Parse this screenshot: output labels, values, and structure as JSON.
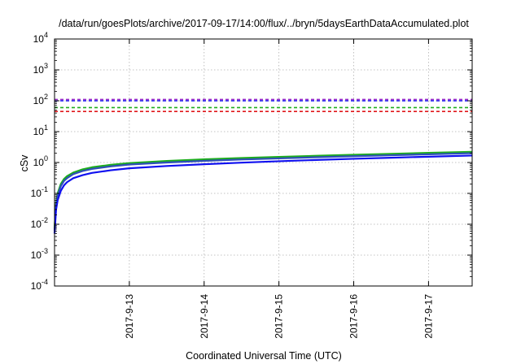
{
  "chart_data": {
    "type": "line",
    "title": "/data/run/goesPlots/archive/2017-09-17/14:00/flux/../bryn/5daysEarthDataAccumulated.plot",
    "xlabel": "Coordinated Universal Time (UTC)",
    "ylabel": "cSv",
    "x_scale": "time",
    "y_scale": "log",
    "xlim": [
      "2017-09-12 00:00",
      "2017-09-17 14:00"
    ],
    "ylim": [
      0.0001,
      10000
    ],
    "x_ticks": [
      "2017-9-13",
      "2017-9-14",
      "2017-9-15",
      "2017-9-16",
      "2017-9-17"
    ],
    "y_ticks": [
      {
        "value": 0.0001,
        "base": "10",
        "exp": "-4"
      },
      {
        "value": 0.001,
        "base": "10",
        "exp": "-3"
      },
      {
        "value": 0.01,
        "base": "10",
        "exp": "-2"
      },
      {
        "value": 0.1,
        "base": "10",
        "exp": "-1"
      },
      {
        "value": 1,
        "base": "10",
        "exp": "0"
      },
      {
        "value": 10,
        "base": "10",
        "exp": "1"
      },
      {
        "value": 100,
        "base": "10",
        "exp": "2"
      },
      {
        "value": 1000,
        "base": "10",
        "exp": "3"
      },
      {
        "value": 10000,
        "base": "10",
        "exp": "4"
      }
    ],
    "grid": true,
    "legend": "none",
    "series": [
      {
        "style": "solid",
        "color": "#e0171b",
        "x": [
          "2017-09-12 00:00",
          "2017-09-12 00:30",
          "2017-09-12 01:00",
          "2017-09-12 02:00",
          "2017-09-12 03:00",
          "2017-09-12 04:00",
          "2017-09-12 06:00",
          "2017-09-12 09:00",
          "2017-09-12 12:00",
          "2017-09-12 18:00",
          "2017-09-13 00:00",
          "2017-09-13 12:00",
          "2017-09-14 00:00",
          "2017-09-14 12:00",
          "2017-09-15 00:00",
          "2017-09-15 12:00",
          "2017-09-16 00:00",
          "2017-09-16 12:00",
          "2017-09-17 00:00",
          "2017-09-17 14:00"
        ],
        "y": [
          0.0068,
          0.045,
          0.09,
          0.18,
          0.26,
          0.33,
          0.44,
          0.56,
          0.66,
          0.8,
          0.92,
          1.08,
          1.22,
          1.35,
          1.47,
          1.6,
          1.72,
          1.85,
          1.98,
          2.15
        ]
      },
      {
        "style": "solid",
        "color": "#1dad1d",
        "x": [
          "2017-09-12 00:00",
          "2017-09-12 00:30",
          "2017-09-12 01:00",
          "2017-09-12 02:00",
          "2017-09-12 03:00",
          "2017-09-12 04:00",
          "2017-09-12 06:00",
          "2017-09-12 09:00",
          "2017-09-12 12:00",
          "2017-09-12 18:00",
          "2017-09-13 00:00",
          "2017-09-13 12:00",
          "2017-09-14 00:00",
          "2017-09-14 12:00",
          "2017-09-15 00:00",
          "2017-09-15 12:00",
          "2017-09-16 00:00",
          "2017-09-16 12:00",
          "2017-09-17 00:00",
          "2017-09-17 14:00"
        ],
        "y": [
          0.0075,
          0.05,
          0.1,
          0.2,
          0.29,
          0.36,
          0.47,
          0.6,
          0.7,
          0.84,
          0.96,
          1.12,
          1.27,
          1.4,
          1.52,
          1.65,
          1.78,
          1.91,
          2.05,
          2.22
        ]
      },
      {
        "style": "solid",
        "color": "#2f4fb8",
        "x": [
          "2017-09-12 00:00",
          "2017-09-12 00:30",
          "2017-09-12 01:00",
          "2017-09-12 02:00",
          "2017-09-12 03:00",
          "2017-09-12 04:00",
          "2017-09-12 06:00",
          "2017-09-12 09:00",
          "2017-09-12 12:00",
          "2017-09-12 18:00",
          "2017-09-13 00:00",
          "2017-09-13 12:00",
          "2017-09-14 00:00",
          "2017-09-14 12:00",
          "2017-09-15 00:00",
          "2017-09-15 12:00",
          "2017-09-16 00:00",
          "2017-09-16 12:00",
          "2017-09-17 00:00",
          "2017-09-17 14:00"
        ],
        "y": [
          0.0062,
          0.042,
          0.085,
          0.17,
          0.25,
          0.31,
          0.42,
          0.53,
          0.62,
          0.75,
          0.86,
          1.0,
          1.13,
          1.25,
          1.36,
          1.48,
          1.6,
          1.72,
          1.84,
          2.0
        ]
      },
      {
        "style": "solid",
        "color": "#1010f0",
        "x": [
          "2017-09-12 00:00",
          "2017-09-12 00:30",
          "2017-09-12 01:00",
          "2017-09-12 02:00",
          "2017-09-12 03:00",
          "2017-09-12 04:00",
          "2017-09-12 06:00",
          "2017-09-12 09:00",
          "2017-09-12 12:00",
          "2017-09-12 18:00",
          "2017-09-13 00:00",
          "2017-09-13 12:00",
          "2017-09-14 00:00",
          "2017-09-14 12:00",
          "2017-09-15 00:00",
          "2017-09-15 12:00",
          "2017-09-16 00:00",
          "2017-09-16 12:00",
          "2017-09-17 00:00",
          "2017-09-17 14:00"
        ],
        "y": [
          0.005,
          0.03,
          0.06,
          0.12,
          0.18,
          0.23,
          0.31,
          0.39,
          0.46,
          0.56,
          0.65,
          0.77,
          0.88,
          0.99,
          1.1,
          1.21,
          1.32,
          1.43,
          1.54,
          1.68
        ]
      },
      {
        "style": "dashed",
        "color": "#e0171b",
        "x": [
          "2017-09-12 00:00",
          "2017-09-17 14:00"
        ],
        "y": [
          45,
          45
        ]
      },
      {
        "style": "dashed",
        "color": "#1dad1d",
        "x": [
          "2017-09-12 00:00",
          "2017-09-17 14:00"
        ],
        "y": [
          60,
          60
        ]
      },
      {
        "style": "dashed",
        "color": "#1010f0",
        "x": [
          "2017-09-12 00:00",
          "2017-09-17 14:00"
        ],
        "y": [
          100,
          100
        ]
      },
      {
        "style": "dashed",
        "color": "#9b2cc9",
        "x": [
          "2017-09-12 00:00",
          "2017-09-17 14:00"
        ],
        "y": [
          110,
          110
        ]
      }
    ]
  }
}
